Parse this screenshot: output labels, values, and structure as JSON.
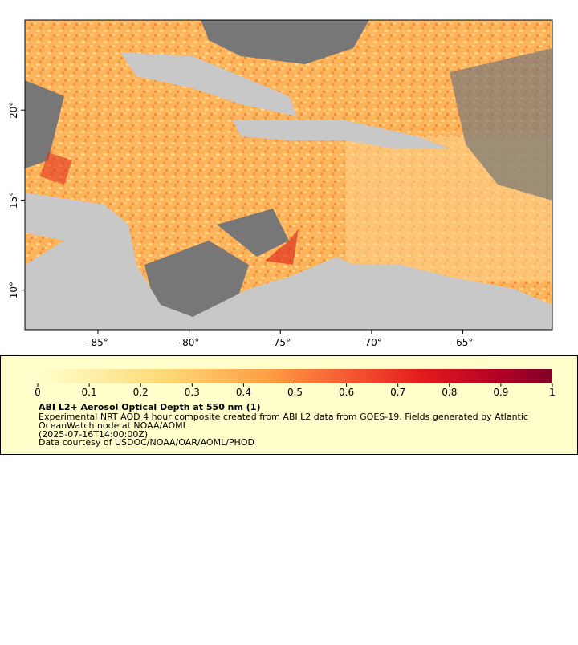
{
  "map": {
    "xlim": [
      -89,
      -60.1
    ],
    "ylim": [
      7.8,
      25.0
    ],
    "xticks": [
      {
        "value": -85,
        "label": "-85°"
      },
      {
        "value": -80,
        "label": "-80°"
      },
      {
        "value": -75,
        "label": "-75°"
      },
      {
        "value": -70,
        "label": "-70°"
      },
      {
        "value": -65,
        "label": "-65°"
      }
    ],
    "yticks": [
      {
        "value": 10,
        "label": "10°"
      },
      {
        "value": 15,
        "label": "15°"
      },
      {
        "value": 20,
        "label": "20°"
      }
    ]
  },
  "colorbar": {
    "range": [
      0,
      1
    ],
    "ticks": [
      0,
      0.1,
      0.2,
      0.3,
      0.4,
      0.5,
      0.6,
      0.7,
      0.8,
      0.9,
      1
    ]
  },
  "legend": {
    "title": "ABI L2+ Aerosol Optical Depth at 550 nm (1)",
    "lines": [
      "Experimental NRT AOD 4 hour composite created from ABI L2 data from GOES-19. Fields generated by Atlantic",
      "OceanWatch node at NOAA/AOML",
      "(2025-07-16T14:00:00Z)",
      "Data courtesy of USDOC/NOAA/OAR/AOML/PHOD"
    ]
  }
}
